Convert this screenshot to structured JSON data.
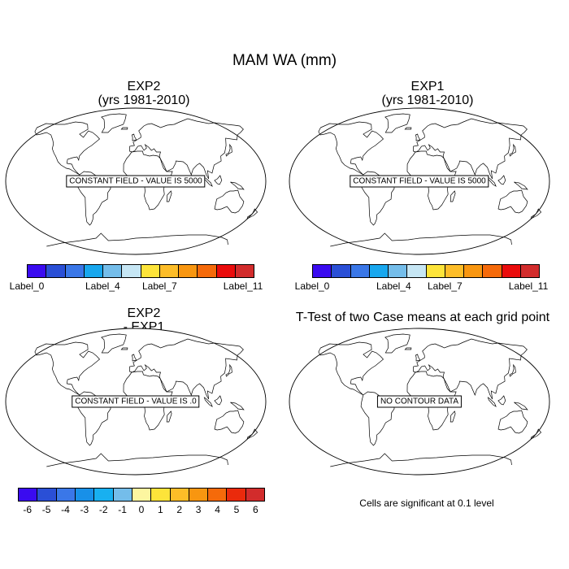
{
  "title": "MAM WA (mm)",
  "panels": [
    {
      "title_line1": "EXP2",
      "title_line2": "(yrs 1981-2010)",
      "field_label": "CONSTANT FIELD - VALUE IS 5000"
    },
    {
      "title_line1": "EXP1",
      "title_line2": "(yrs 1981-2010)",
      "field_label": "CONSTANT FIELD - VALUE IS 5000"
    },
    {
      "title_line1": "EXP2",
      "title_line2": "- EXP1",
      "field_label": "CONSTANT FIELD - VALUE IS .0"
    },
    {
      "title_line1": "T-Test of two Case means at each grid point",
      "field_label": "NO CONTOUR DATA"
    }
  ],
  "colorbar_top": {
    "colors": [
      "#3a0bf0",
      "#2a4fd6",
      "#3a77e8",
      "#18a7ee",
      "#74bdea",
      "#c6e6f4",
      "#fde43a",
      "#fdbd28",
      "#f89610",
      "#f56a0a",
      "#ea0c0c",
      "#d22c2c"
    ],
    "labels": [
      "Label_0",
      "Label_4",
      "Label_7",
      "Label_11"
    ]
  },
  "colorbar_diff": {
    "colors": [
      "#3a0bf0",
      "#2a4fd6",
      "#3a77e8",
      "#1890e8",
      "#18b0f0",
      "#74bdea",
      "#fdf6a0",
      "#fde43a",
      "#fdbd28",
      "#f89610",
      "#f56a0a",
      "#ea2a0c",
      "#d22c2c"
    ],
    "labels": [
      "-6",
      "-5",
      "-4",
      "-3",
      "-2",
      "-1",
      "0",
      "1",
      "2",
      "3",
      "4",
      "5",
      "6"
    ]
  },
  "significance_note": "Cells are significant at 0.1 level"
}
